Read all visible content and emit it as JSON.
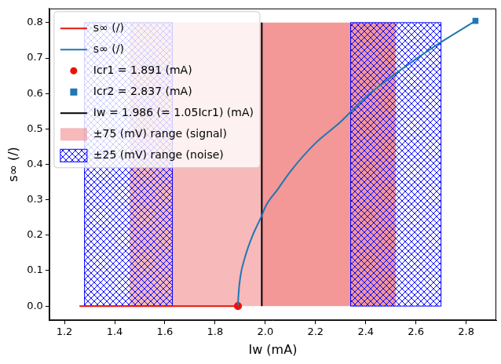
{
  "chart_data": {
    "type": "line",
    "x_label": "Iw (mA)",
    "y_label": "s∞ (/)",
    "xlim": [
      1.14,
      2.92
    ],
    "xticks": [
      1.2,
      1.4,
      1.6,
      1.8,
      {
        "value": 2,
        "label": "2.0"
      },
      2.2,
      2.4,
      2.6,
      2.8
    ],
    "ylim": [
      -0.04,
      0.84
    ],
    "yticks": [
      {
        "value": 0,
        "label": "0.0"
      },
      0.1,
      0.2,
      0.3,
      0.4,
      0.5,
      0.6,
      0.7,
      0.8
    ],
    "grid": false,
    "legend": "upper left",
    "series": [
      {
        "name": "s∞ (/)",
        "type": "line",
        "color": "#e8140c",
        "x": [
          1.26,
          1.891
        ],
        "values": [
          0,
          0
        ]
      },
      {
        "name": "s∞ (/)",
        "type": "line",
        "color": "#1f77b4",
        "x": [
          1.891,
          1.893,
          1.9,
          1.92,
          1.95,
          1.986,
          2.0,
          2.05,
          2.1,
          2.2,
          2.3,
          2.4,
          2.5,
          2.6,
          2.7,
          2.837
        ],
        "values": [
          0,
          0.03,
          0.08,
          0.14,
          0.2,
          0.255,
          0.28,
          0.33,
          0.38,
          0.46,
          0.52,
          0.59,
          0.646,
          0.697,
          0.745,
          0.805
        ]
      },
      {
        "name": "Icr1 = 1.891 (mA)",
        "type": "scatter",
        "marker": "circle",
        "color": "#e8140c",
        "x": [
          1.891
        ],
        "values": [
          0
        ]
      },
      {
        "name": "Icr2 = 2.837 (mA)",
        "type": "scatter",
        "marker": "square",
        "color": "#1f77b4",
        "x": [
          2.837
        ],
        "values": [
          0.805
        ]
      },
      {
        "name": "Iw = 1.986 (= 1.05Icr1) (mA)",
        "type": "vline",
        "color": "#000000",
        "x": [
          1.986,
          1.986
        ],
        "values": [
          0,
          0.8
        ]
      },
      {
        "name": "±75 (mV) range (signal)",
        "type": "span",
        "color": "#f08080",
        "x": [
          1.46,
          2.52
        ],
        "values": [
          0.8,
          0.8
        ]
      },
      {
        "name": "±25 (mV) range (noise)",
        "type": "hatch_span",
        "color": "#0000ff",
        "x": [
          1.28,
          1.63,
          null,
          2.34,
          2.7
        ],
        "values": [
          0.8,
          0.8,
          null,
          0.8,
          0.8
        ]
      }
    ]
  }
}
